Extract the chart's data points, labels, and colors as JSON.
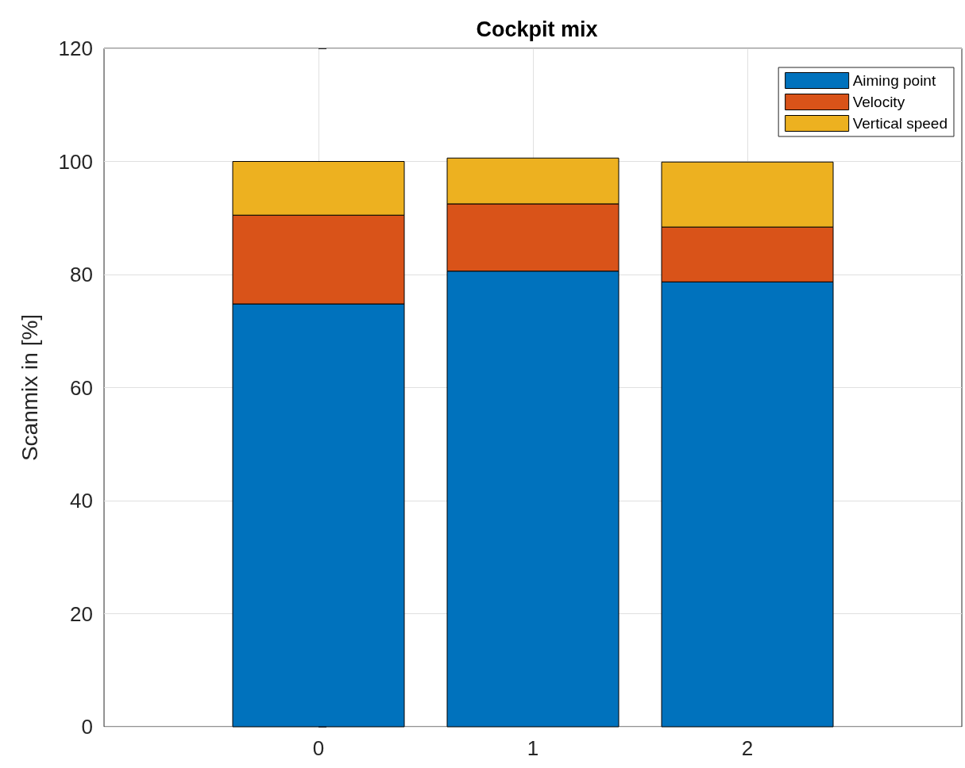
{
  "chart_data": {
    "type": "bar",
    "title": "Cockpit mix",
    "ylabel": "Scanmix in [%]",
    "stacked": true,
    "x": [
      0,
      1,
      2
    ],
    "xlim": [
      -1,
      3
    ],
    "xticks": [
      0,
      1,
      2
    ],
    "ylim": [
      0,
      120
    ],
    "yticks": [
      0,
      20,
      40,
      60,
      80,
      100,
      120
    ],
    "grid": true,
    "legend": "top right",
    "series": [
      {
        "name": "Aiming point",
        "color": "#0072bd",
        "values": [
          74.8,
          80.6,
          78.7
        ]
      },
      {
        "name": "Velocity",
        "color": "#d95319",
        "values": [
          15.7,
          11.9,
          9.7
        ]
      },
      {
        "name": "Vertical speed",
        "color": "#edb120",
        "values": [
          9.5,
          8.1,
          11.5
        ]
      }
    ]
  }
}
